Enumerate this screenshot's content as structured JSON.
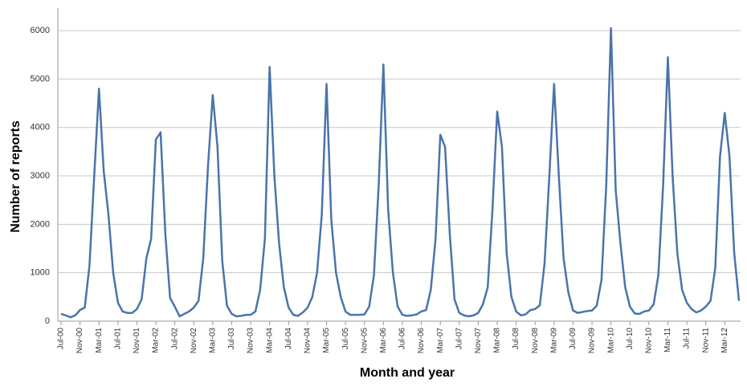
{
  "chart_data": {
    "type": "line",
    "x_label": "Month and year",
    "y_label": "Number of reports",
    "categories": [
      "Jul-00",
      null,
      null,
      null,
      "Nov-00",
      null,
      null,
      null,
      "Mar-01",
      null,
      null,
      null,
      "Jul-01",
      null,
      null,
      null,
      "Nov-01",
      null,
      null,
      null,
      "Mar-02",
      null,
      null,
      null,
      "Jul-02",
      null,
      null,
      null,
      "Nov-02",
      null,
      null,
      null,
      "Mar-03",
      null,
      null,
      null,
      "Jul-03",
      null,
      null,
      null,
      "Nov-03",
      null,
      null,
      null,
      "Mar-04",
      null,
      null,
      null,
      "Jul-04",
      null,
      null,
      null,
      "Nov-04",
      null,
      null,
      null,
      "Mar-05",
      null,
      null,
      null,
      "Jul-05",
      null,
      null,
      null,
      "Nov-05",
      null,
      null,
      null,
      "Mar-06",
      null,
      null,
      null,
      "Jul-06",
      null,
      null,
      null,
      "Nov-06",
      null,
      null,
      null,
      "Mar-07",
      null,
      null,
      null,
      "Jul-07",
      null,
      null,
      null,
      "Nov-07",
      null,
      null,
      null,
      "Mar-08",
      null,
      null,
      null,
      "Jul-08",
      null,
      null,
      null,
      "Nov-08",
      null,
      null,
      null,
      "Mar-09",
      null,
      null,
      null,
      "Jul-09",
      null,
      null,
      null,
      "Nov-09",
      null,
      null,
      null,
      "Mar-10",
      null,
      null,
      null,
      "Jul-10",
      null,
      null,
      null,
      "Nov-10",
      null,
      null,
      null,
      "Mar-11",
      null,
      null,
      null,
      "Jul-11",
      null,
      null,
      null,
      "Nov-11",
      null,
      null,
      null,
      "Mar-12",
      null,
      null,
      null
    ],
    "values": [
      150,
      120,
      80,
      120,
      230,
      280,
      1150,
      3000,
      4800,
      3100,
      2200,
      1000,
      380,
      200,
      170,
      170,
      250,
      450,
      1300,
      1700,
      3750,
      3900,
      1800,
      480,
      300,
      100,
      150,
      200,
      280,
      420,
      1300,
      3200,
      4670,
      3600,
      1250,
      320,
      150,
      100,
      110,
      130,
      130,
      200,
      650,
      1700,
      5250,
      3000,
      1600,
      700,
      280,
      130,
      110,
      180,
      280,
      500,
      1000,
      2200,
      4900,
      2100,
      1000,
      500,
      200,
      130,
      130,
      130,
      140,
      300,
      950,
      2800,
      5300,
      2300,
      1000,
      300,
      130,
      110,
      120,
      140,
      200,
      230,
      650,
      1700,
      3850,
      3600,
      1800,
      450,
      170,
      120,
      100,
      120,
      170,
      350,
      700,
      2300,
      4330,
      3600,
      1400,
      500,
      200,
      120,
      140,
      230,
      250,
      330,
      1200,
      3000,
      4900,
      3000,
      1300,
      600,
      220,
      170,
      190,
      210,
      220,
      320,
      850,
      2800,
      6050,
      2700,
      1600,
      700,
      300,
      160,
      150,
      200,
      220,
      350,
      950,
      2800,
      5450,
      3000,
      1400,
      650,
      380,
      250,
      180,
      220,
      300,
      420,
      1100,
      3400,
      4300,
      3400,
      1400,
      420
    ],
    "color": "#4a74aa",
    "ylim": [
      0,
      6300
    ],
    "yticks": [
      0,
      1000,
      2000,
      3000,
      4000,
      5000,
      6000
    ],
    "grid": true
  }
}
